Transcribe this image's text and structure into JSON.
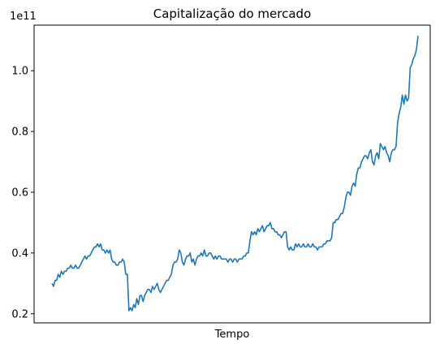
{
  "chart_data": {
    "type": "line",
    "title": "Capitalização do mercado",
    "xlabel": "Tempo",
    "ylabel": "",
    "y_offset_label": "1e11",
    "y_scale": 100000000000,
    "ylim": [
      0.17,
      1.15
    ],
    "yticks": [
      0.2,
      0.4,
      0.6,
      0.8,
      1.0
    ],
    "ytick_labels": [
      "0.2",
      "0.4",
      "0.6",
      "0.8",
      "1.0"
    ],
    "xticks": [],
    "grid": false,
    "legend": "none",
    "line_color": "#1f77b4",
    "series": [
      {
        "values": [
          0.3,
          0.29,
          0.31,
          0.31,
          0.33,
          0.32,
          0.34,
          0.33,
          0.34,
          0.34,
          0.35,
          0.35,
          0.36,
          0.35,
          0.35,
          0.36,
          0.35,
          0.35,
          0.36,
          0.37,
          0.38,
          0.39,
          0.38,
          0.39,
          0.39,
          0.4,
          0.41,
          0.42,
          0.42,
          0.43,
          0.42,
          0.43,
          0.41,
          0.41,
          0.4,
          0.41,
          0.4,
          0.41,
          0.38,
          0.37,
          0.37,
          0.36,
          0.36,
          0.37,
          0.37,
          0.38,
          0.37,
          0.33,
          0.33,
          0.21,
          0.22,
          0.21,
          0.23,
          0.22,
          0.25,
          0.23,
          0.26,
          0.26,
          0.24,
          0.26,
          0.27,
          0.28,
          0.28,
          0.27,
          0.29,
          0.28,
          0.29,
          0.3,
          0.28,
          0.27,
          0.28,
          0.29,
          0.3,
          0.31,
          0.31,
          0.32,
          0.33,
          0.36,
          0.37,
          0.37,
          0.38,
          0.41,
          0.4,
          0.37,
          0.36,
          0.38,
          0.39,
          0.39,
          0.4,
          0.37,
          0.38,
          0.36,
          0.38,
          0.39,
          0.39,
          0.4,
          0.39,
          0.41,
          0.39,
          0.39,
          0.4,
          0.4,
          0.39,
          0.38,
          0.39,
          0.38,
          0.39,
          0.39,
          0.38,
          0.38,
          0.38,
          0.38,
          0.37,
          0.38,
          0.38,
          0.37,
          0.38,
          0.38,
          0.37,
          0.38,
          0.38,
          0.38,
          0.39,
          0.39,
          0.4,
          0.4,
          0.44,
          0.47,
          0.46,
          0.47,
          0.46,
          0.48,
          0.47,
          0.48,
          0.49,
          0.47,
          0.48,
          0.49,
          0.49,
          0.5,
          0.48,
          0.48,
          0.47,
          0.47,
          0.46,
          0.46,
          0.45,
          0.46,
          0.47,
          0.47,
          0.42,
          0.41,
          0.42,
          0.41,
          0.41,
          0.43,
          0.42,
          0.43,
          0.42,
          0.42,
          0.43,
          0.42,
          0.42,
          0.43,
          0.42,
          0.42,
          0.43,
          0.42,
          0.42,
          0.41,
          0.42,
          0.42,
          0.42,
          0.43,
          0.43,
          0.44,
          0.44,
          0.44,
          0.45,
          0.5,
          0.5,
          0.51,
          0.51,
          0.52,
          0.53,
          0.53,
          0.55,
          0.58,
          0.6,
          0.6,
          0.59,
          0.62,
          0.63,
          0.62,
          0.66,
          0.68,
          0.68,
          0.7,
          0.71,
          0.72,
          0.72,
          0.71,
          0.73,
          0.74,
          0.7,
          0.69,
          0.72,
          0.73,
          0.71,
          0.76,
          0.75,
          0.74,
          0.75,
          0.73,
          0.72,
          0.7,
          0.73,
          0.74,
          0.74,
          0.75,
          0.83,
          0.86,
          0.88,
          0.92,
          0.89,
          0.92,
          0.9,
          0.91,
          1.01,
          1.02,
          1.04,
          1.05,
          1.07,
          1.115
        ]
      }
    ]
  }
}
